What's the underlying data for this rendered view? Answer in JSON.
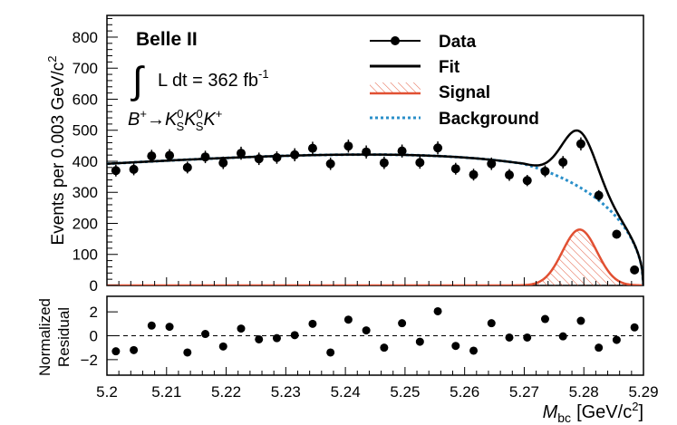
{
  "chart_data": {
    "type": "scatter",
    "xlabel_main": "M",
    "xlabel_sub": "bc",
    "xlabel_unit": "[GeV/c",
    "xlabel_unit_sup": "2",
    "xlabel_unit_end": "]",
    "ylabel": "Events per 0.003 GeV/c",
    "ylabel_sup": "2",
    "residual_ylabel_line1": "Normalized",
    "residual_ylabel_line2": "Residual",
    "xlim": [
      5.2,
      5.29
    ],
    "ylim": [
      0,
      870
    ],
    "residual_ylim": [
      -3.3,
      3.3
    ],
    "x_ticks": [
      "5.2",
      "5.21",
      "5.22",
      "5.23",
      "5.24",
      "5.25",
      "5.26",
      "5.27",
      "5.28",
      "5.29"
    ],
    "x_tick_values": [
      5.2,
      5.21,
      5.22,
      5.23,
      5.24,
      5.25,
      5.26,
      5.27,
      5.28,
      5.29
    ],
    "y_ticks": [
      "0",
      "100",
      "200",
      "300",
      "400",
      "500",
      "600",
      "700",
      "800"
    ],
    "y_tick_values": [
      0,
      100,
      200,
      300,
      400,
      500,
      600,
      700,
      800
    ],
    "residual_ticks": [
      "−2",
      "0",
      "2"
    ],
    "residual_tick_values": [
      -2,
      0,
      2
    ],
    "annotations": {
      "experiment": "Belle II",
      "lumi_integral": "∫",
      "lumi_text": "L dt = 362 fb",
      "lumi_sup": "-1",
      "decay": "B⁺→K⁰_S K⁰_S K⁺"
    },
    "legend": [
      {
        "label": "Data",
        "style": "marker-line"
      },
      {
        "label": "Fit",
        "style": "line"
      },
      {
        "label": "Signal",
        "style": "hatched"
      },
      {
        "label": "Background",
        "style": "dotted"
      }
    ],
    "colors": {
      "data": "#000000",
      "fit": "#000000",
      "signal": "#e15032",
      "background": "#2a8fc9"
    },
    "data_points": {
      "x": [
        5.2015,
        5.2045,
        5.2075,
        5.2105,
        5.2135,
        5.2165,
        5.2195,
        5.2225,
        5.2255,
        5.2285,
        5.2315,
        5.2345,
        5.2375,
        5.2405,
        5.2435,
        5.2465,
        5.2495,
        5.2525,
        5.2555,
        5.2585,
        5.2615,
        5.2645,
        5.2675,
        5.2705,
        5.2735,
        5.2765,
        5.2795,
        5.2825,
        5.2855,
        5.2885
      ],
      "y": [
        370,
        374,
        417,
        419,
        380,
        414,
        395,
        426,
        408,
        412,
        421,
        442,
        392,
        449,
        430,
        395,
        433,
        396,
        443,
        376,
        357,
        392,
        356,
        338,
        368,
        397,
        456,
        290,
        165,
        50
      ],
      "yerr": [
        19,
        19,
        20,
        20,
        19,
        20,
        20,
        21,
        20,
        20,
        21,
        21,
        20,
        21,
        21,
        20,
        21,
        20,
        21,
        19,
        19,
        20,
        19,
        18,
        19,
        20,
        21,
        17,
        13,
        7
      ],
      "residual": [
        -1.3,
        -1.2,
        0.85,
        0.75,
        -1.4,
        0.15,
        -0.9,
        0.6,
        -0.3,
        -0.2,
        0.05,
        1.0,
        -1.4,
        1.35,
        0.45,
        -1.0,
        1.05,
        -0.5,
        2.05,
        -0.85,
        -1.25,
        1.05,
        -0.15,
        -0.15,
        1.4,
        -0.05,
        1.25,
        -1.0,
        -0.35,
        0.7
      ]
    },
    "model": {
      "mes_endpoint": 5.29,
      "background_at_5_2": 392,
      "background_peak": 420,
      "background_peak_x": 5.235,
      "signal_peak": 180,
      "signal_mean": 5.2793,
      "signal_sigma": 0.0029
    }
  }
}
